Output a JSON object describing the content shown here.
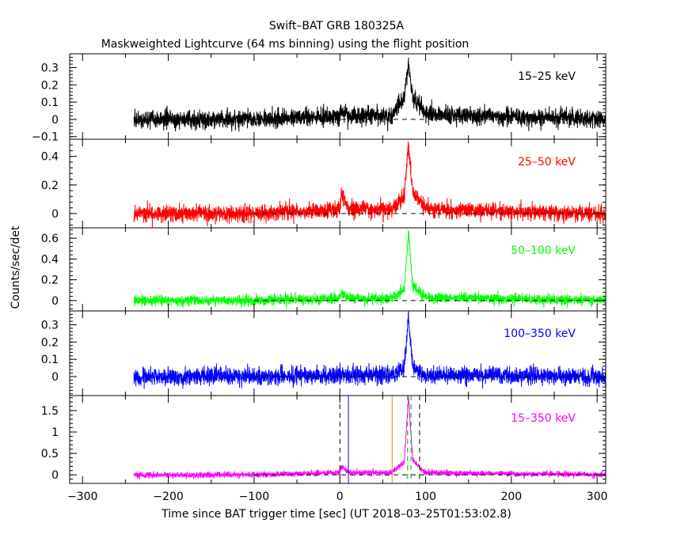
{
  "chart_data": {
    "type": "line",
    "title": "Swift–BAT GRB 180325A",
    "subtitle": "Maskweighted Lightcurve (64 ms binning) using the flight position",
    "xlabel": "Time since BAT trigger time [sec] (UT 2018–03–25T01:53:02.8)",
    "ylabel": "Counts/sec/det",
    "xlim": [
      -315,
      310
    ],
    "x_ticks": [
      -300,
      -200,
      -100,
      0,
      100,
      200,
      300
    ],
    "x_tick_labels": [
      "−300",
      "−200",
      "−100",
      "0",
      "100",
      "200",
      "300"
    ],
    "data_start": -240,
    "grid": false,
    "panels": [
      {
        "band": "15–25 keV",
        "color": "#000000",
        "ylim": [
          -0.115,
          0.38
        ],
        "y_ticks": [
          -0.1,
          0,
          0.1,
          0.2,
          0.3
        ],
        "y_tick_labels": [
          "−0.1",
          "0",
          "0.1",
          "0.2",
          "0.3"
        ],
        "noise": 0.045,
        "peak": 0.33,
        "pre_peak": 0.06,
        "series": {
          "x": [
            -240,
            -100,
            0,
            2,
            10,
            60,
            75,
            80,
            85,
            100,
            310
          ],
          "y": [
            0,
            0,
            0.02,
            0.06,
            0.02,
            0.02,
            0.12,
            0.33,
            0.12,
            0.03,
            0
          ]
        }
      },
      {
        "band": "25–50 keV",
        "color": "#ff0000",
        "ylim": [
          -0.1,
          0.52
        ],
        "y_ticks": [
          0,
          0.2,
          0.4
        ],
        "y_tick_labels": [
          "0",
          "0.2",
          "0.4"
        ],
        "noise": 0.05,
        "peak": 0.48,
        "pre_peak": 0.15,
        "series": {
          "x": [
            -240,
            -100,
            0,
            2,
            10,
            60,
            75,
            80,
            85,
            100,
            310
          ],
          "y": [
            0,
            0,
            0.03,
            0.15,
            0.03,
            0.03,
            0.12,
            0.48,
            0.15,
            0.03,
            0
          ]
        }
      },
      {
        "band": "50–100 keV",
        "color": "#00ff00",
        "ylim": [
          -0.1,
          0.7
        ],
        "y_ticks": [
          0,
          0.2,
          0.4,
          0.6
        ],
        "y_tick_labels": [
          "0",
          "0.2",
          "0.4",
          "0.6"
        ],
        "noise": 0.045,
        "peak": 0.66,
        "pre_peak": 0.08,
        "series": {
          "x": [
            -240,
            -100,
            0,
            2,
            10,
            60,
            75,
            80,
            85,
            100,
            310
          ],
          "y": [
            0,
            0,
            0.02,
            0.08,
            0.02,
            0.02,
            0.1,
            0.66,
            0.15,
            0.03,
            0
          ]
        }
      },
      {
        "band": "100–350 keV",
        "color": "#0000ff",
        "ylim": [
          -0.11,
          0.38
        ],
        "y_ticks": [
          0,
          0.1,
          0.2,
          0.3
        ],
        "y_tick_labels": [
          "0",
          "0.1",
          "0.2",
          "0.3"
        ],
        "noise": 0.045,
        "peak": 0.35,
        "pre_peak": 0.02,
        "series": {
          "x": [
            -240,
            -100,
            0,
            10,
            60,
            75,
            80,
            85,
            100,
            310
          ],
          "y": [
            0,
            0,
            0.01,
            0.01,
            0.01,
            0.05,
            0.35,
            0.06,
            0.01,
            0
          ]
        }
      },
      {
        "band": "15–350 keV",
        "color": "#ff00ff",
        "ylim": [
          -0.2,
          1.85
        ],
        "y_ticks": [
          0,
          0.5,
          1,
          1.5
        ],
        "y_tick_labels": [
          "0",
          "0.5",
          "1",
          "1.5"
        ],
        "noise": 0.06,
        "peak": 1.8,
        "pre_peak": 0.2,
        "series": {
          "x": [
            -240,
            -100,
            0,
            2,
            10,
            60,
            75,
            80,
            85,
            100,
            310
          ],
          "y": [
            0,
            0,
            0.05,
            0.2,
            0.05,
            0.05,
            0.3,
            1.8,
            0.35,
            0.05,
            0
          ]
        },
        "markers": [
          {
            "x": 0,
            "color": "#000000",
            "style": "dashed"
          },
          {
            "x": 93,
            "color": "#000000",
            "style": "dashed"
          },
          {
            "x": 10,
            "color": "#0000ff",
            "style": "solid"
          },
          {
            "x": 61,
            "color": "#ff8000",
            "style": "solid"
          },
          {
            "x": 79,
            "color": "#00aa00",
            "style": "dashed"
          },
          {
            "x": 83,
            "color": "#00aa00",
            "style": "dashed"
          }
        ]
      }
    ]
  }
}
